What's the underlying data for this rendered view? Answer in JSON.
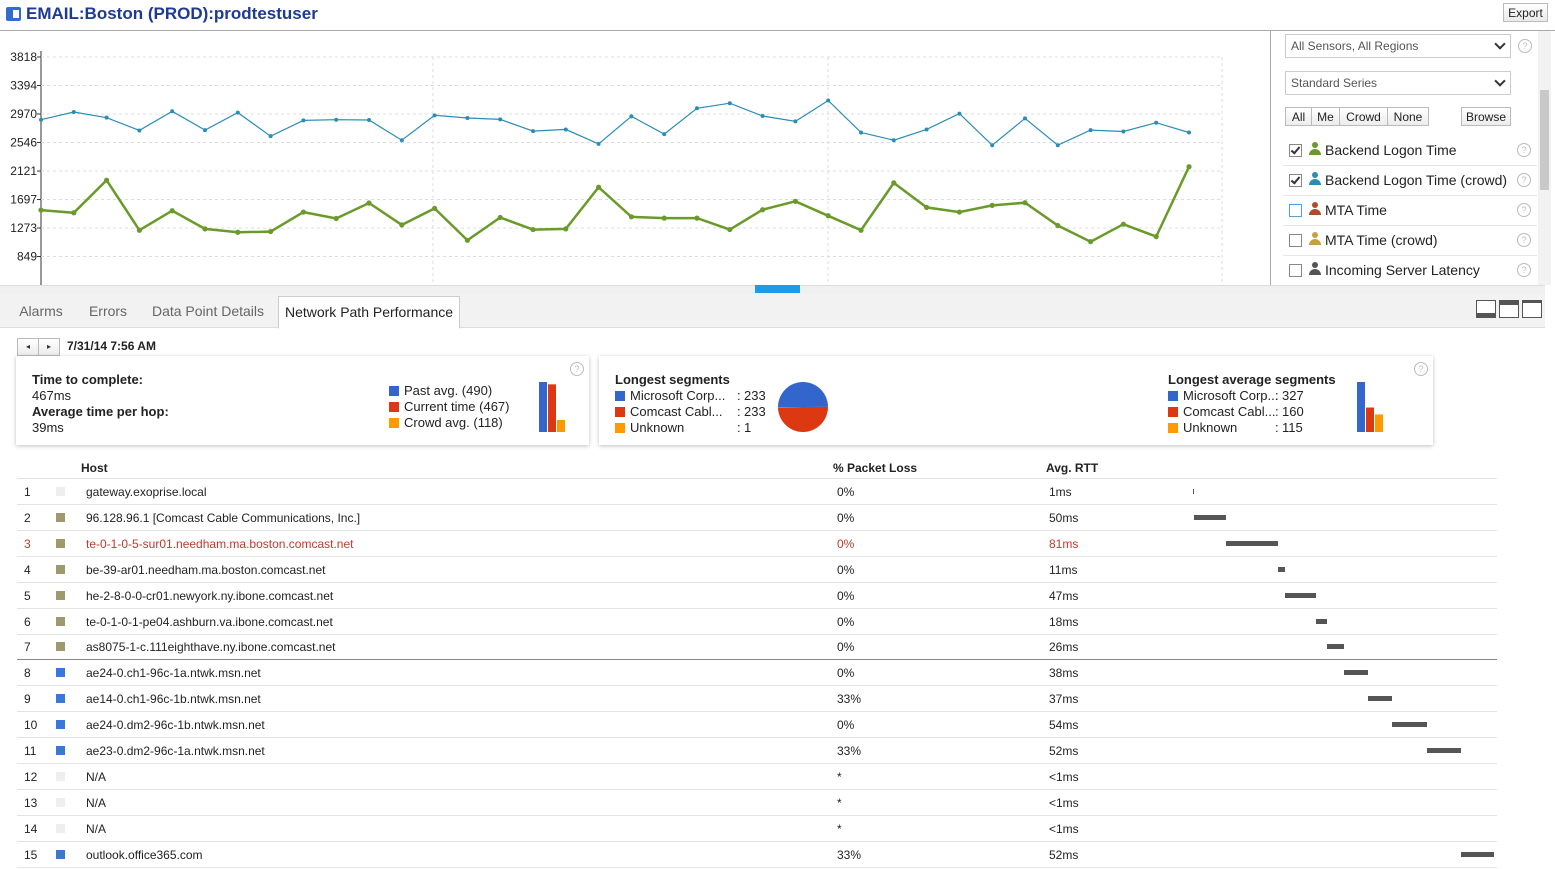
{
  "header": {
    "title": "EMAIL:Boston (PROD):prodtestuser",
    "export_label": "Export"
  },
  "chart_data": {
    "type": "line",
    "y_ticks": [
      "3818",
      "3394",
      "2970",
      "2546",
      "2121",
      "1697",
      "1273",
      "849"
    ],
    "ylim": [
      425,
      3818
    ],
    "grid": true,
    "series": [
      {
        "name": "Backend Logon Time (crowd)",
        "color": "#2a8db5",
        "values": [
          2885,
          3000,
          2915,
          2725,
          3010,
          2730,
          2990,
          2640,
          2875,
          2885,
          2880,
          2580,
          2950,
          2910,
          2890,
          2715,
          2740,
          2525,
          2935,
          2670,
          3055,
          3130,
          2940,
          2860,
          3170,
          2695,
          2580,
          2740,
          2975,
          2505,
          2905,
          2505,
          2730,
          2710,
          2840,
          2695
        ]
      },
      {
        "name": "Backend Logon Time",
        "color": "#6a9a2a",
        "values": [
          1540,
          1500,
          1985,
          1240,
          1530,
          1260,
          1210,
          1220,
          1510,
          1415,
          1645,
          1320,
          1565,
          1090,
          1430,
          1250,
          1260,
          1880,
          1440,
          1420,
          1420,
          1250,
          1545,
          1670,
          1455,
          1240,
          1945,
          1580,
          1510,
          1610,
          1650,
          1310,
          1070,
          1330,
          1145,
          2185
        ]
      }
    ]
  },
  "side_panel": {
    "sensor_select": "All Sensors, All Regions",
    "series_select": "Standard Series",
    "filter_buttons": [
      "All",
      "Me",
      "Crowd",
      "None"
    ],
    "browse_label": "Browse",
    "help_glyph": "?",
    "sensors": [
      {
        "label": "Backend Logon Time",
        "checked": true,
        "icon": "person-icon",
        "color": "#6a9a2a"
      },
      {
        "label": "Backend Logon Time (crowd)",
        "checked": true,
        "icon": "crowd-icon",
        "color": "#2a8db5"
      },
      {
        "label": "MTA Time",
        "checked": false,
        "icon": "person-icon",
        "color": "#b04a2a"
      },
      {
        "label": "MTA Time (crowd)",
        "checked": false,
        "icon": "crowd-icon",
        "color": "#c8a040"
      },
      {
        "label": "Incoming Server Latency",
        "checked": false,
        "icon": "person-icon",
        "color": "#555555"
      }
    ]
  },
  "tabs": [
    {
      "label": "Alarms",
      "active": false
    },
    {
      "label": "Errors",
      "active": false
    },
    {
      "label": "Data Point Details",
      "active": false
    },
    {
      "label": "Network Path Performance",
      "active": true
    }
  ],
  "navigator": {
    "prev_glyph": "◂",
    "next_glyph": "▸",
    "date": "7/31/14 7:56 AM"
  },
  "summary": {
    "time_label": "Time to complete:",
    "time_value": "467ms",
    "hop_label": "Average time per hop:",
    "hop_value": "39ms",
    "legend": [
      {
        "label": "Past avg. (490)",
        "color": "#3366cc",
        "value": 490
      },
      {
        "label": "Current time (467)",
        "color": "#dc3912",
        "value": 467
      },
      {
        "label": "Crowd avg. (118)",
        "color": "#ff9900",
        "value": 118
      }
    ]
  },
  "longest_segments": {
    "title": "Longest segments",
    "items": [
      {
        "name": "Microsoft Corp...",
        "sep": ":",
        "value": "233",
        "color": "#3366cc"
      },
      {
        "name": "Comcast Cabl...",
        "sep": ":",
        "value": "233",
        "color": "#dc3912"
      },
      {
        "name": "Unknown",
        "sep": ":",
        "value": "1",
        "color": "#ff9900"
      }
    ],
    "pie_values": [
      233,
      233,
      1
    ]
  },
  "longest_average_segments": {
    "title": "Longest average segments",
    "items": [
      {
        "name": "Microsoft Corp...",
        "sep": ":",
        "value": "327",
        "color": "#3366cc"
      },
      {
        "name": "Comcast Cabl...",
        "sep": ":",
        "value": "160",
        "color": "#dc3912"
      },
      {
        "name": "Unknown",
        "sep": ":",
        "value": "115",
        "color": "#ff9900"
      }
    ]
  },
  "table": {
    "headers": {
      "host": "Host",
      "loss": "% Packet Loss",
      "rtt": "Avg. RTT"
    },
    "rows": [
      {
        "num": "1",
        "host": "gateway.exoprise.local",
        "loss": "0%",
        "rtt": "1ms",
        "color": "#eeeeee",
        "ms": 1
      },
      {
        "num": "2",
        "host": "96.128.96.1 [Comcast Cable Communications, Inc.]",
        "loss": "0%",
        "rtt": "50ms",
        "color": "#9e9a6e",
        "ms": 50
      },
      {
        "num": "3",
        "host": "te-0-1-0-5-sur01.needham.ma.boston.comcast.net",
        "loss": "0%",
        "rtt": "81ms",
        "color": "#9e9a6e",
        "ms": 81,
        "highlight": true
      },
      {
        "num": "4",
        "host": "be-39-ar01.needham.ma.boston.comcast.net",
        "loss": "0%",
        "rtt": "11ms",
        "color": "#9e9a6e",
        "ms": 11
      },
      {
        "num": "5",
        "host": "he-2-8-0-0-cr01.newyork.ny.ibone.comcast.net",
        "loss": "0%",
        "rtt": "47ms",
        "color": "#9e9a6e",
        "ms": 47
      },
      {
        "num": "6",
        "host": "te-0-1-0-1-pe04.ashburn.va.ibone.comcast.net",
        "loss": "0%",
        "rtt": "18ms",
        "color": "#9e9a6e",
        "ms": 18
      },
      {
        "num": "7",
        "host": "as8075-1-c.111eighthave.ny.ibone.comcast.net",
        "loss": "0%",
        "rtt": "26ms",
        "color": "#9e9a6e",
        "ms": 26,
        "separator": true
      },
      {
        "num": "8",
        "host": "ae24-0.ch1-96c-1a.ntwk.msn.net",
        "loss": "0%",
        "rtt": "38ms",
        "color": "#3a78d8",
        "ms": 38
      },
      {
        "num": "9",
        "host": "ae14-0.ch1-96c-1b.ntwk.msn.net",
        "loss": "33%",
        "rtt": "37ms",
        "color": "#3a78d8",
        "ms": 37
      },
      {
        "num": "10",
        "host": "ae24-0.dm2-96c-1b.ntwk.msn.net",
        "loss": "0%",
        "rtt": "54ms",
        "color": "#3a78d8",
        "ms": 54
      },
      {
        "num": "11",
        "host": "ae23-0.dm2-96c-1a.ntwk.msn.net",
        "loss": "33%",
        "rtt": "52ms",
        "color": "#3a78d8",
        "ms": 52
      },
      {
        "num": "12",
        "host": "N/A",
        "loss": "*",
        "rtt": "<1ms",
        "color": "#eeeeee",
        "ms": 0
      },
      {
        "num": "13",
        "host": "N/A",
        "loss": "*",
        "rtt": "<1ms",
        "color": "#eeeeee",
        "ms": 0
      },
      {
        "num": "14",
        "host": "N/A",
        "loss": "*",
        "rtt": "<1ms",
        "color": "#eeeeee",
        "ms": 0
      },
      {
        "num": "15",
        "host": "outlook.office365.com",
        "loss": "33%",
        "rtt": "52ms",
        "color": "#3a78d8",
        "ms": 52
      }
    ]
  }
}
